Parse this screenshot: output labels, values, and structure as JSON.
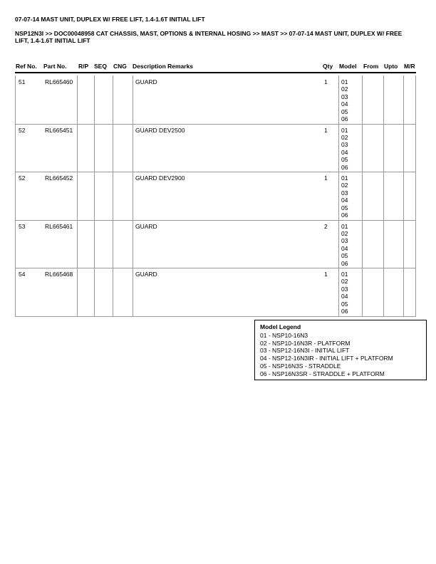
{
  "header": {
    "title": "07-07-14 MAST UNIT, DUPLEX W/ FREE LIFT, 1.4-1.6T INITIAL LIFT",
    "breadcrumb": "NSP12N3I >> DOC00048958 CAT CHASSIS, MAST, OPTIONS & INTERNAL HOSING >> MAST >> 07-07-14 MAST UNIT, DUPLEX W/ FREE LIFT, 1.4-1.6T INITIAL LIFT"
  },
  "table": {
    "columns": [
      "Ref No.",
      "Part No.",
      "R/P",
      "SEQ",
      "CNG",
      "Description Remarks",
      "Qty",
      "Model",
      "From",
      "Upto",
      "M/R"
    ],
    "rows": [
      {
        "ref": "51",
        "part": "RL665460",
        "description": "GUARD",
        "qty": "1",
        "models": [
          "01",
          "02",
          "03",
          "04",
          "05",
          "06"
        ]
      },
      {
        "ref": "52",
        "part": "RL665451",
        "description": "GUARD DEV2500",
        "qty": "1",
        "models": [
          "01",
          "02",
          "03",
          "04",
          "05",
          "06"
        ]
      },
      {
        "ref": "52",
        "part": "RL665452",
        "description": "GUARD DEV2900",
        "qty": "1",
        "models": [
          "01",
          "02",
          "03",
          "04",
          "05",
          "06"
        ]
      },
      {
        "ref": "53",
        "part": "RL665461",
        "description": "GUARD",
        "qty": "2",
        "models": [
          "01",
          "02",
          "03",
          "04",
          "05",
          "06"
        ]
      },
      {
        "ref": "54",
        "part": "RL665468",
        "description": "GUARD",
        "qty": "1",
        "models": [
          "01",
          "02",
          "03",
          "04",
          "05",
          "06"
        ]
      }
    ]
  },
  "legend": {
    "title": "Model Legend",
    "entries": [
      "01 - NSP10-16N3",
      "02 - NSP10-16N3R - PLATFORM",
      "03 - NSP12-16N3I - INITIAL LIFT",
      "04 - NSP12-16N3IR - INITIAL LIFT + PLATFORM",
      "05 - NSP16N3S - STRADDLE",
      "06 - NSP16N3SR - STRADDLE + PLATFORM"
    ]
  }
}
